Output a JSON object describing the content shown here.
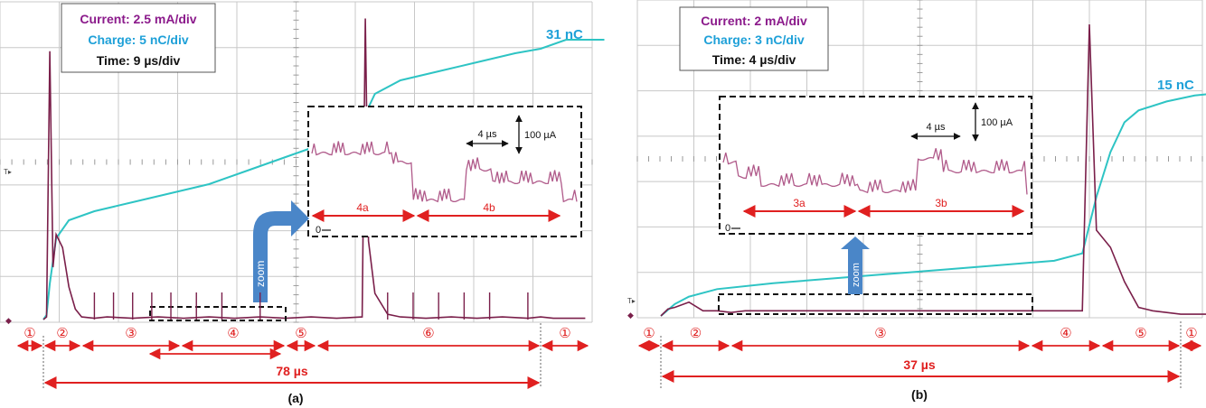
{
  "panels": [
    {
      "caption": "(a)",
      "info": {
        "current": "Current: 2.5 mA/div",
        "charge": "Charge: 5 nC/div",
        "time": "Time: 9 µs/div"
      },
      "charge_end_label": "31 nC",
      "total_duration_label": "78 µs",
      "zoom_label": "zoom",
      "phase_labels": [
        "①",
        "②",
        "③",
        "④",
        "⑤",
        "⑥",
        "①"
      ],
      "inset": {
        "scale_time": "4 µs",
        "scale_current": "100 µA",
        "zero_label": "0",
        "segments": [
          "4a",
          "4b"
        ]
      }
    },
    {
      "caption": "(b)",
      "info": {
        "current": "Current: 2 mA/div",
        "charge": "Charge: 3 nC/div",
        "time": "Time: 4 µs/div"
      },
      "charge_end_label": "15 nC",
      "total_duration_label": "37 µs",
      "zoom_label": "zoom",
      "phase_labels": [
        "①",
        "②",
        "③",
        "④",
        "⑤",
        "①"
      ],
      "inset": {
        "scale_time": "4 µs",
        "scale_current": "100 µA",
        "zero_label": "0",
        "segments": [
          "3a",
          "3b"
        ]
      }
    }
  ],
  "colors": {
    "current_trace": "#7a1f4a",
    "charge_trace": "#2ec4c4",
    "annotation_red": "#e02020",
    "current_text": "#8b1a8b",
    "charge_text": "#1ea0d8",
    "zoom_arrow": "#4a86c8",
    "grid": "#c8c8c8"
  },
  "chart_data": [
    {
      "type": "line",
      "title": "",
      "x_unit": "µs",
      "series": [
        {
          "name": "Current",
          "scale": "2.5 mA/div",
          "x": [
            0,
            0.5,
            1,
            1.5,
            2,
            3,
            4,
            5,
            6,
            8,
            10,
            14,
            18,
            22,
            26,
            30,
            34,
            38,
            42,
            46,
            50,
            50.5,
            51,
            52,
            54,
            56,
            60,
            64,
            68,
            72,
            76,
            78,
            80,
            85
          ],
          "y": [
            0,
            0.2,
            20.5,
            4,
            6.5,
            5.5,
            2.5,
            0.8,
            0.2,
            0.1,
            0.2,
            0.1,
            0.2,
            0.1,
            0.2,
            0.1,
            0.2,
            0.1,
            0.2,
            0.1,
            0.2,
            23,
            6,
            2,
            0.4,
            0.2,
            0.1,
            0.2,
            0.1,
            0.2,
            0.1,
            0.2,
            0.1,
            0.1
          ]
        },
        {
          "name": "Charge",
          "scale": "5 nC/div",
          "end_value": 31,
          "x": [
            0,
            0.5,
            1,
            2,
            4,
            8,
            14,
            20,
            26,
            32,
            38,
            44,
            48,
            50,
            51,
            52,
            56,
            62,
            68,
            74,
            78,
            82,
            84,
            88
          ],
          "y": [
            0,
            0.5,
            4,
            9,
            11,
            12,
            13,
            14,
            15,
            16.5,
            18,
            19.5,
            20,
            21,
            23.5,
            25,
            26.5,
            27.5,
            28.5,
            29.5,
            30,
            31,
            31,
            31
          ]
        }
      ],
      "duration_us": 78
    },
    {
      "type": "line",
      "title": "",
      "x_unit": "µs",
      "series": [
        {
          "name": "Current",
          "scale": "2 mA/div",
          "x": [
            0,
            0.5,
            1,
            2,
            3,
            4,
            5,
            6,
            10,
            14,
            18,
            22,
            26,
            30,
            30.5,
            31,
            32,
            33,
            34,
            35,
            36,
            37,
            40
          ],
          "y": [
            0,
            0.4,
            0.5,
            0.8,
            0.3,
            0.3,
            0.2,
            0.3,
            0.3,
            0.3,
            0.3,
            0.3,
            0.3,
            0.3,
            17,
            5,
            4,
            2,
            0.5,
            0.3,
            0.2,
            0.1,
            0.1
          ]
        },
        {
          "name": "Charge",
          "scale": "3 nC/div",
          "end_value": 15,
          "x": [
            0,
            1,
            2,
            4,
            8,
            12,
            16,
            20,
            24,
            28,
            30,
            31,
            32,
            33,
            34,
            36,
            38,
            40
          ],
          "y": [
            0,
            0.8,
            1.3,
            1.8,
            2.2,
            2.5,
            2.8,
            3.1,
            3.4,
            3.7,
            4.2,
            8,
            11,
            13,
            13.8,
            14.4,
            14.8,
            15
          ]
        }
      ],
      "duration_us": 37
    }
  ]
}
